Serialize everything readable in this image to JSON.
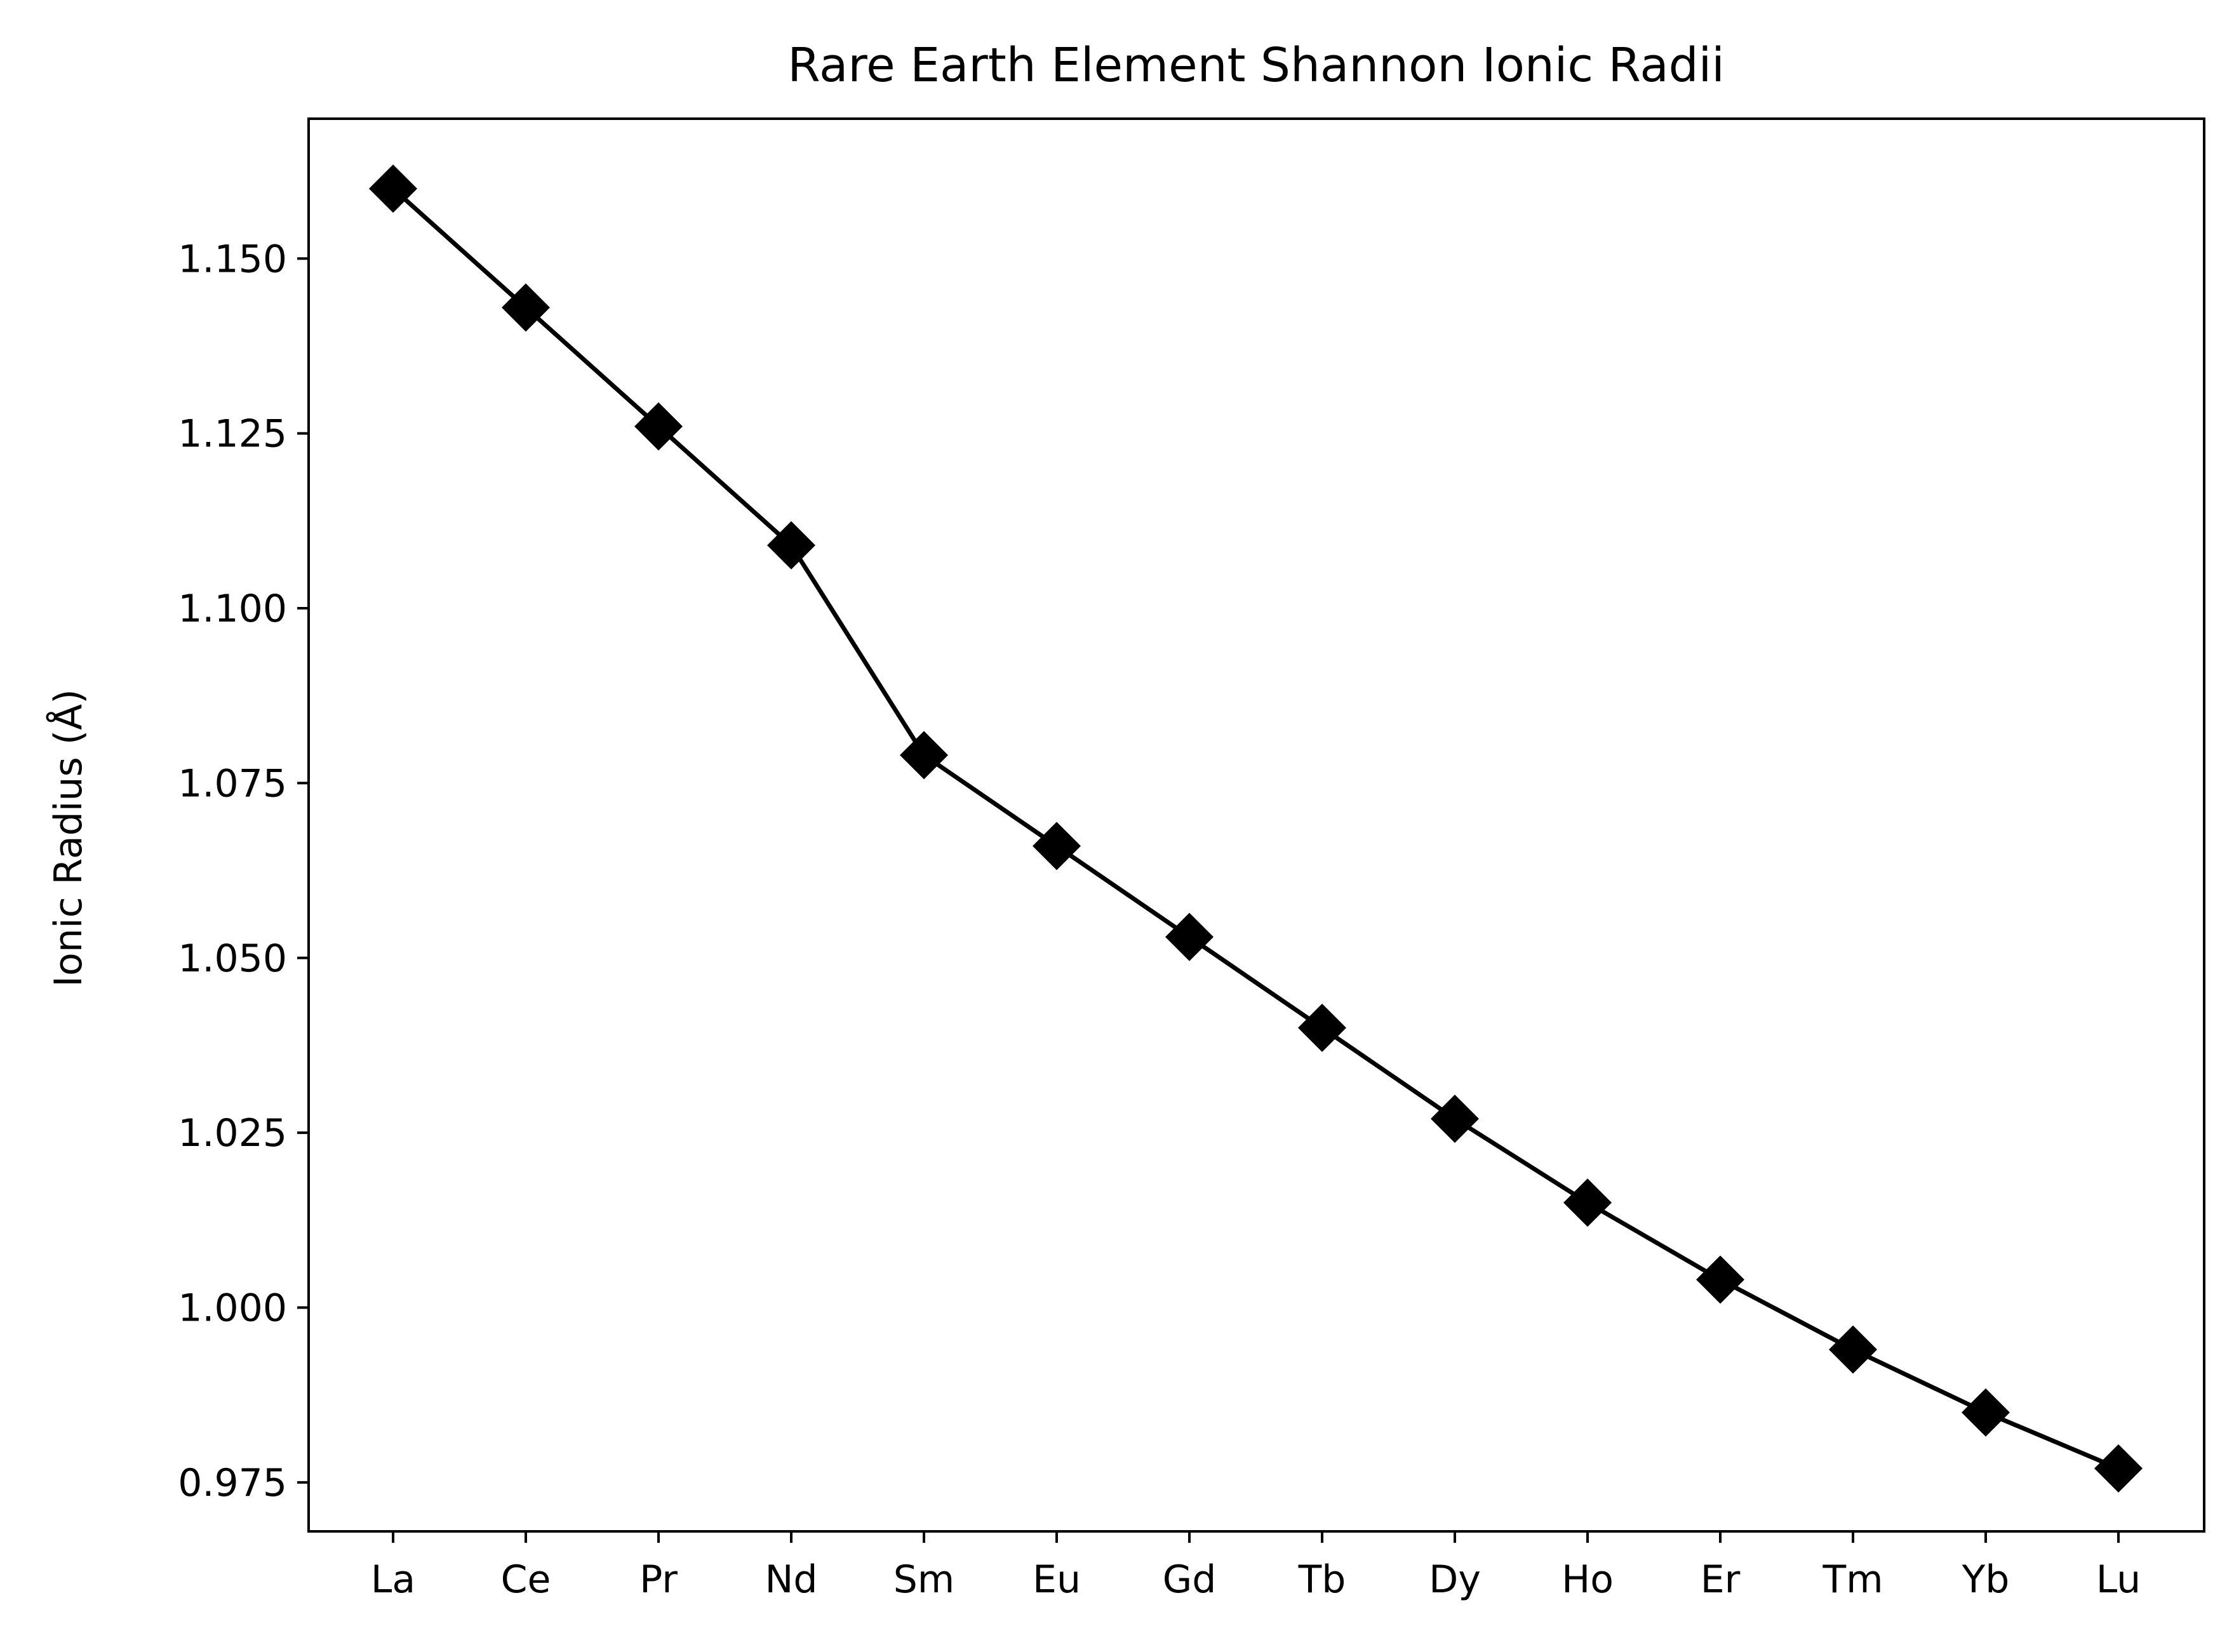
{
  "chart_data": {
    "type": "line",
    "title": "Rare Earth Element Shannon Ionic Radii",
    "xlabel": "",
    "ylabel": "Ionic Radius (Å)",
    "categories": [
      "La",
      "Ce",
      "Pr",
      "Nd",
      "Sm",
      "Eu",
      "Gd",
      "Tb",
      "Dy",
      "Ho",
      "Er",
      "Tm",
      "Yb",
      "Lu"
    ],
    "series": [
      {
        "values": [
          1.16,
          1.143,
          1.126,
          1.109,
          1.079,
          1.066,
          1.053,
          1.04,
          1.027,
          1.015,
          1.004,
          0.994,
          0.985,
          0.977
        ],
        "color": "#000000",
        "marker": "diamond"
      }
    ],
    "yticks": [
      "0.975",
      "1.000",
      "1.025",
      "1.050",
      "1.075",
      "1.100",
      "1.125",
      "1.150"
    ],
    "ylim": [
      0.968,
      1.17
    ],
    "grid": false,
    "legend": "none"
  }
}
